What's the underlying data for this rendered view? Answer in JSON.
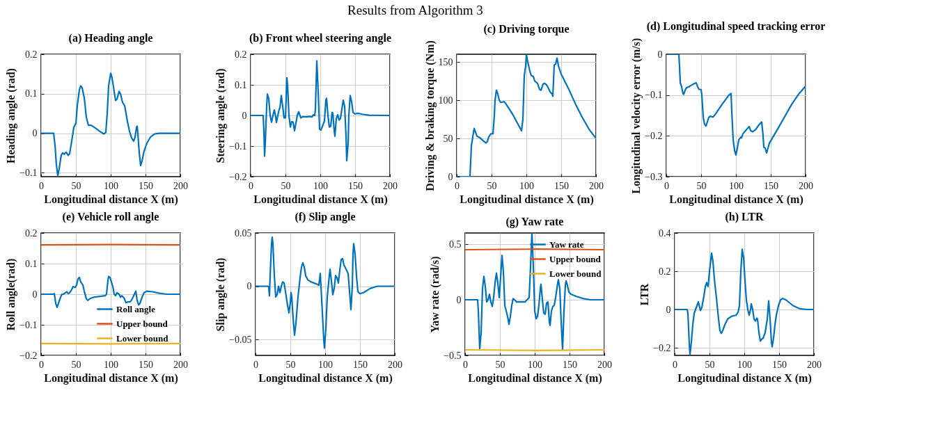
{
  "chart_data": [
    {
      "type": "line",
      "title": "(a) Heading angle",
      "xlabel": "Longitudinal distance X (m)",
      "ylabel": "Heading angle (rad)",
      "annotations": [
        "Results from Algorithm 3"
      ],
      "grid": true,
      "xlim": [
        0,
        200
      ],
      "xticks": [
        0,
        50,
        100,
        150,
        200
      ],
      "ylim": [
        -0.11,
        0.2
      ],
      "yticks": [
        -0.1,
        0,
        0.1,
        0.2
      ],
      "series": [
        {
          "color": "#0072bd",
          "x": [
            0,
            18,
            20,
            22,
            24,
            26,
            29,
            31,
            33,
            36,
            39,
            41,
            44,
            47,
            50,
            52,
            55,
            57,
            59,
            62,
            65,
            68,
            72,
            78,
            85,
            90,
            93,
            95,
            97,
            100,
            102,
            105,
            107,
            109,
            112,
            114,
            117,
            120,
            124,
            127,
            130,
            133,
            135,
            137,
            138,
            139,
            141,
            143,
            145,
            148,
            152,
            157,
            163,
            170,
            200
          ],
          "values": [
            0,
            0,
            -0.03,
            -0.08,
            -0.108,
            -0.09,
            -0.055,
            -0.05,
            -0.053,
            -0.048,
            -0.056,
            -0.052,
            -0.02,
            0.015,
            0.025,
            0.07,
            0.11,
            0.12,
            0.115,
            0.09,
            0.04,
            0.02,
            0.02,
            0.013,
            0.004,
            -0.002,
            0.002,
            0.05,
            0.12,
            0.152,
            0.14,
            0.105,
            0.083,
            0.086,
            0.106,
            0.1,
            0.078,
            0.07,
            0.03,
            0.005,
            -0.012,
            -0.02,
            -0.01,
            0.015,
            0.018,
            0,
            -0.05,
            -0.082,
            -0.07,
            -0.045,
            -0.025,
            -0.01,
            -0.002,
            0,
            0
          ]
        }
      ]
    },
    {
      "type": "line",
      "title": "(b) Front wheel steering angle",
      "xlabel": "Longitudinal distance X (m)",
      "ylabel": "Steering angle (rad)",
      "grid": true,
      "xlim": [
        0,
        200
      ],
      "xticks": [
        0,
        50,
        100,
        150,
        200
      ],
      "ylim": [
        -0.2,
        0.2
      ],
      "yticks": [
        -0.2,
        -0.1,
        0,
        0.1,
        0.2
      ],
      "series": [
        {
          "color": "#0072bd",
          "x": [
            0,
            18,
            19,
            20,
            21,
            23,
            24,
            26,
            28,
            30,
            32,
            34,
            36,
            37,
            39,
            41,
            42,
            44,
            46,
            48,
            50,
            51,
            52,
            53,
            55,
            57,
            59,
            61,
            63,
            65,
            67,
            69,
            72,
            75,
            80,
            85,
            88,
            90,
            92,
            93,
            95,
            97,
            99,
            101,
            104,
            106,
            108,
            109,
            111,
            113,
            115,
            117,
            118,
            120,
            121,
            123,
            125,
            127,
            129,
            131,
            133,
            135,
            137,
            138,
            140,
            141,
            143,
            145,
            147,
            150,
            154,
            160,
            170,
            200
          ],
          "values": [
            0,
            0,
            -0.05,
            -0.133,
            -0.09,
            0.03,
            0.07,
            0.055,
            0,
            -0.022,
            0,
            0.018,
            -0.005,
            -0.023,
            0,
            0.02,
            0.025,
            0.065,
            0.03,
            -0.008,
            -0.008,
            0.06,
            0.123,
            0.1,
            0,
            -0.038,
            -0.02,
            -0.022,
            -0.05,
            -0.025,
            0,
            0.012,
            -0.008,
            -0.004,
            -0.005,
            -0.003,
            -0.005,
            0.002,
            0,
            0.02,
            0.178,
            0.08,
            -0.045,
            -0.048,
            -0.03,
            -0.018,
            0.05,
            0.056,
            0,
            -0.038,
            -0.035,
            0.01,
            0.008,
            -0.05,
            -0.068,
            -0.01,
            0.002,
            -0.015,
            -0.01,
            0.02,
            0.05,
            0.03,
            -0.07,
            -0.148,
            -0.09,
            0,
            0.065,
            0.045,
            0.01,
            0.005,
            0.007,
            0.004,
            0.001,
            0
          ]
        }
      ]
    },
    {
      "type": "line",
      "title": "(c) Driving torque",
      "xlabel": "Longitudinal distance X (m)",
      "ylabel": "Driving & braking torque (Nm)",
      "grid": true,
      "xlim": [
        0,
        200
      ],
      "xticks": [
        0,
        50,
        100,
        150,
        200
      ],
      "ylim": [
        0,
        160
      ],
      "yticks": [
        0,
        50,
        100,
        150
      ],
      "series": [
        {
          "color": "#0072bd",
          "x": [
            0,
            19,
            20,
            21,
            23,
            25,
            27,
            29,
            33,
            38,
            42,
            44,
            46,
            49,
            52,
            54,
            55,
            57,
            59,
            61,
            63,
            68,
            70,
            80,
            93,
            95,
            97,
            99,
            100,
            102,
            105,
            107,
            110,
            112,
            116,
            119,
            121,
            124,
            126,
            129,
            132,
            134,
            137,
            138,
            140,
            142,
            144,
            146,
            150,
            160,
            170,
            180,
            190,
            200
          ],
          "values": [
            0,
            0,
            20,
            40,
            52,
            63,
            58,
            53,
            51,
            47,
            44,
            46,
            52,
            56,
            56,
            80,
            100,
            113,
            108,
            100,
            97,
            98,
            96,
            82,
            60,
            75,
            132,
            145,
            160,
            150,
            138,
            132,
            131,
            125,
            122,
            114,
            113,
            121,
            122,
            120,
            115,
            111,
            108,
            105,
            146,
            147,
            155,
            145,
            134,
            116,
            96,
            78,
            62,
            50
          ]
        }
      ]
    },
    {
      "type": "line",
      "title": "(d) Longitudinal speed tracking error",
      "xlabel": "Longitudinal distance X (m)",
      "ylabel": "Longitudinal velocity error (m/s)",
      "grid": true,
      "xlim": [
        0,
        200
      ],
      "xticks": [
        0,
        50,
        100,
        150,
        200
      ],
      "ylim": [
        -0.3,
        0
      ],
      "yticks": [
        -0.3,
        -0.2,
        -0.1,
        0
      ],
      "series": [
        {
          "color": "#0072bd",
          "x": [
            0,
            18,
            19,
            20,
            22,
            24,
            25,
            27,
            29,
            32,
            35,
            40,
            43,
            45,
            47,
            50,
            51,
            53,
            55,
            57,
            59,
            61,
            63,
            67,
            70,
            80,
            90,
            93,
            94,
            96,
            98,
            100,
            102,
            104,
            107,
            108,
            110,
            115,
            119,
            121,
            124,
            128,
            133,
            137,
            139,
            140,
            142,
            144,
            146,
            148,
            160,
            170,
            180,
            190,
            200
          ],
          "values": [
            0,
            0,
            -0.03,
            -0.07,
            -0.08,
            -0.097,
            -0.098,
            -0.088,
            -0.082,
            -0.08,
            -0.077,
            -0.072,
            -0.07,
            -0.08,
            -0.086,
            -0.087,
            -0.1,
            -0.155,
            -0.172,
            -0.176,
            -0.165,
            -0.155,
            -0.152,
            -0.154,
            -0.148,
            -0.123,
            -0.1,
            -0.096,
            -0.14,
            -0.21,
            -0.235,
            -0.247,
            -0.23,
            -0.21,
            -0.203,
            -0.205,
            -0.195,
            -0.185,
            -0.177,
            -0.187,
            -0.19,
            -0.185,
            -0.173,
            -0.166,
            -0.2,
            -0.228,
            -0.23,
            -0.242,
            -0.23,
            -0.218,
            -0.183,
            -0.153,
            -0.123,
            -0.098,
            -0.078
          ]
        }
      ]
    },
    {
      "type": "line",
      "title": "(e) Vehicle roll angle",
      "xlabel": "Longitudinal distance X (m)",
      "ylabel": "Roll angle(rad)",
      "grid": true,
      "legend": "bottom right",
      "xlim": [
        0,
        200
      ],
      "xticks": [
        0,
        50,
        100,
        150,
        200
      ],
      "ylim": [
        -0.2,
        0.2
      ],
      "yticks": [
        -0.2,
        -0.1,
        0,
        0.1,
        0.2
      ],
      "series": [
        {
          "name": "Roll angle",
          "color": "#0072bd",
          "x": [
            0,
            18,
            19,
            21,
            23,
            25,
            28,
            30,
            32,
            35,
            37,
            39,
            41,
            44,
            46,
            49,
            51,
            53,
            55,
            57,
            60,
            62,
            65,
            67,
            70,
            75,
            85,
            92,
            94,
            96,
            97,
            99,
            101,
            103,
            105,
            107,
            109,
            112,
            114,
            116,
            119,
            122,
            125,
            128,
            131,
            134,
            136,
            138,
            140,
            142,
            145,
            148,
            152,
            160,
            170,
            180,
            200
          ],
          "values": [
            0,
            0,
            0.002,
            -0.03,
            -0.043,
            -0.03,
            -0.01,
            0,
            0,
            0.005,
            0.008,
            0.002,
            0.005,
            0.015,
            0.025,
            0.022,
            0.03,
            0.05,
            0.055,
            0.04,
            0.03,
            0.01,
            -0.015,
            -0.02,
            -0.015,
            -0.01,
            -0.007,
            -0.005,
            0,
            0.045,
            0.058,
            0.055,
            0.04,
            0.025,
            0,
            -0.005,
            0.005,
            0,
            -0.01,
            -0.005,
            -0.012,
            -0.028,
            -0.025,
            -0.025,
            -0.015,
            0,
            0.01,
            -0.02,
            -0.035,
            -0.03,
            -0.01,
            0.005,
            0.01,
            0.008,
            0.003,
            0,
            0
          ]
        },
        {
          "name": "Upper bound",
          "color": "#d95319",
          "x": [
            0,
            100,
            200
          ],
          "values": [
            0.161,
            0.162,
            0.161
          ]
        },
        {
          "name": "Lower bound",
          "color": "#edb120",
          "x": [
            0,
            100,
            200
          ],
          "values": [
            -0.161,
            -0.162,
            -0.161
          ]
        }
      ]
    },
    {
      "type": "line",
      "title": "(f) Slip angle",
      "xlabel": "Longitudinal distance X (m)",
      "ylabel": "Slip angle (rad)",
      "grid": true,
      "xlim": [
        0,
        200
      ],
      "xticks": [
        0,
        50,
        100,
        150,
        200
      ],
      "ylim": [
        -0.065,
        0.05
      ],
      "yticks": [
        -0.05,
        0,
        0.05
      ],
      "series": [
        {
          "color": "#0072bd",
          "x": [
            0,
            18,
            19,
            20,
            21,
            23,
            24,
            25,
            27,
            29,
            31,
            33,
            35,
            37,
            39,
            41,
            43,
            46,
            48,
            50,
            51,
            52,
            54,
            56,
            58,
            61,
            64,
            66,
            68,
            70,
            72,
            75,
            80,
            88,
            91,
            93,
            94,
            96,
            98,
            99,
            101,
            103,
            106,
            107,
            109,
            111,
            113,
            115,
            117,
            119,
            121,
            123,
            125,
            127,
            130,
            133,
            135,
            137,
            139,
            140,
            141,
            143,
            145,
            147,
            150,
            155,
            165,
            175,
            200
          ],
          "values": [
            0,
            0,
            -0.001,
            -0.009,
            0.01,
            0.04,
            0.046,
            0.04,
            0.01,
            -0.01,
            -0.008,
            0,
            -0.006,
            0,
            0.004,
            0.003,
            -0.005,
            -0.018,
            -0.025,
            -0.015,
            -0.006,
            -0.01,
            -0.03,
            -0.046,
            -0.035,
            -0.01,
            0.008,
            0.018,
            0.022,
            0.018,
            0.01,
            0.006,
            0.004,
            0.002,
            0.001,
            0.012,
            0,
            -0.025,
            -0.05,
            -0.058,
            -0.04,
            -0.01,
            0.01,
            0.016,
            0.005,
            -0.008,
            -0.002,
            0.01,
            0.008,
            0.003,
            0.015,
            0.025,
            0.026,
            0.02,
            0.016,
            0.012,
            -0.005,
            -0.022,
            0,
            0.03,
            0.04,
            0.03,
            0.01,
            -0.005,
            -0.007,
            -0.006,
            -0.002,
            0,
            0
          ]
        }
      ]
    },
    {
      "type": "line",
      "title": "(g) Yaw rate",
      "xlabel": "Longitudinal distance X (m)",
      "ylabel": "Yaw rate (rad/s)",
      "grid": true,
      "legend": "top right",
      "xlim": [
        0,
        200
      ],
      "xticks": [
        0,
        50,
        100,
        150,
        200
      ],
      "ylim": [
        -0.5,
        0.6
      ],
      "yticks": [
        -0.5,
        0,
        0.5
      ],
      "series": [
        {
          "name": "Yaw rate",
          "color": "#0072bd",
          "x": [
            0,
            18,
            19,
            21,
            23,
            25,
            27,
            29,
            31,
            33,
            35,
            37,
            39,
            41,
            43,
            45,
            47,
            49,
            51,
            53,
            55,
            57,
            59,
            61,
            63,
            65,
            67,
            69,
            71,
            74,
            80,
            86,
            89,
            92,
            94,
            96,
            98,
            100,
            102,
            104,
            106,
            108,
            109,
            111,
            113,
            115,
            117,
            119,
            121,
            122,
            124,
            126,
            128,
            130,
            133,
            134,
            136,
            138,
            140,
            142,
            144,
            145,
            147,
            149,
            152,
            160,
            170,
            180,
            200
          ],
          "values": [
            0,
            0,
            -0.1,
            -0.44,
            -0.3,
            0.1,
            0.21,
            0.12,
            -0.02,
            0,
            0.05,
            -0.02,
            -0.06,
            0.02,
            0.15,
            0.24,
            0.15,
            0.02,
            0.2,
            0.4,
            0.25,
            -0.05,
            -0.1,
            -0.15,
            -0.22,
            -0.15,
            -0.05,
            0.01,
            0,
            -0.02,
            -0.02,
            -0.02,
            0,
            0.02,
            0.3,
            0.6,
            0.3,
            -0.1,
            -0.17,
            -0.15,
            -0.05,
            0.1,
            0.14,
            0,
            -0.12,
            -0.13,
            -0.03,
            -0.02,
            -0.2,
            -0.23,
            -0.1,
            -0.06,
            -0.05,
            0.02,
            0.15,
            0.18,
            0.1,
            -0.2,
            -0.45,
            -0.1,
            0.13,
            0.17,
            0.13,
            0.07,
            0.05,
            0.03,
            0.01,
            0,
            0
          ]
        },
        {
          "name": "Upper bound",
          "color": "#d95319",
          "x": [
            0,
            100,
            200
          ],
          "values": [
            0.45,
            0.455,
            0.45
          ]
        },
        {
          "name": "Lower bound",
          "color": "#edb120",
          "x": [
            0,
            100,
            200
          ],
          "values": [
            -0.45,
            -0.455,
            -0.45
          ]
        }
      ]
    },
    {
      "type": "line",
      "title": "(h) LTR",
      "xlabel": "Longitudinal distance X (m)",
      "ylabel": "LTR",
      "grid": true,
      "xlim": [
        0,
        200
      ],
      "xticks": [
        0,
        50,
        100,
        150,
        200
      ],
      "ylim": [
        -0.24,
        0.4
      ],
      "yticks": [
        -0.2,
        0,
        0.2,
        0.4
      ],
      "series": [
        {
          "color": "#0072bd",
          "x": [
            0,
            18,
            19,
            21,
            22,
            24,
            26,
            28,
            30,
            32,
            34,
            36,
            37,
            39,
            42,
            44,
            46,
            48,
            50,
            53,
            55,
            57,
            60,
            63,
            65,
            67,
            69,
            72,
            76,
            82,
            88,
            91,
            93,
            95,
            97,
            99,
            101,
            103,
            105,
            107,
            109,
            110,
            112,
            114,
            116,
            118,
            119,
            121,
            123,
            125,
            127,
            130,
            133,
            134,
            135,
            137,
            139,
            140,
            142,
            144,
            146,
            149,
            152,
            155,
            160,
            170,
            180,
            190,
            200
          ],
          "values": [
            0,
            0,
            -0.02,
            -0.18,
            -0.235,
            -0.17,
            -0.08,
            -0.02,
            0,
            0.02,
            0.04,
            0.01,
            -0.005,
            0.01,
            0.07,
            0.12,
            0.14,
            0.12,
            0.2,
            0.295,
            0.25,
            0.16,
            0.06,
            -0.05,
            -0.11,
            -0.125,
            -0.11,
            -0.08,
            -0.05,
            -0.035,
            -0.03,
            -0.015,
            0.02,
            0.2,
            0.315,
            0.27,
            0.15,
            0.05,
            0,
            -0.03,
            0,
            0.03,
            0,
            -0.05,
            -0.06,
            -0.045,
            -0.05,
            -0.12,
            -0.165,
            -0.155,
            -0.15,
            -0.12,
            -0.05,
            0,
            0.045,
            -0.05,
            -0.17,
            -0.195,
            -0.15,
            -0.08,
            -0.03,
            0.02,
            0.05,
            0.058,
            0.05,
            0.02,
            0.004,
            0,
            0
          ]
        }
      ]
    }
  ]
}
